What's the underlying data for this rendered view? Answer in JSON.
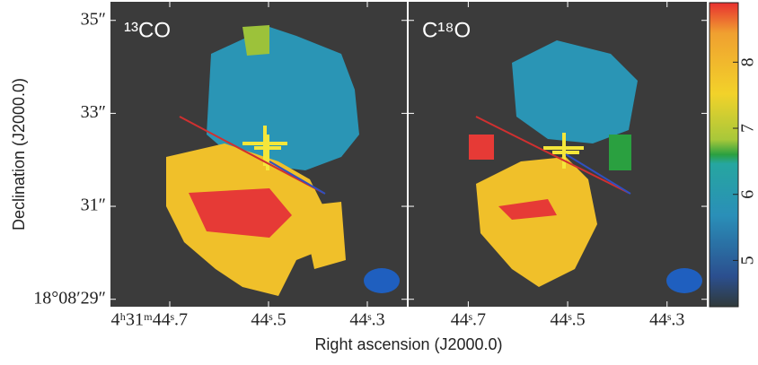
{
  "chart_data": {
    "type": "image-map",
    "ylabel": "Declination (J2000.0)",
    "xlabel": "Right ascension (J2000.0)",
    "ylim": [
      28.84,
      35.4
    ],
    "yticks": [
      {
        "value": 35,
        "label": "35″"
      },
      {
        "value": 33,
        "label": "33″"
      },
      {
        "value": 31,
        "label": "31″"
      },
      {
        "value": 29,
        "label": "18°08′29″"
      }
    ],
    "panels": [
      {
        "title": "¹³CO",
        "xlim": [
          44.82,
          44.22
        ],
        "xticks": [
          {
            "value": 44.7,
            "label": "4ʰ31ᵐ44ˢ.7"
          },
          {
            "value": 44.5,
            "label": "44ˢ.5"
          },
          {
            "value": 44.3,
            "label": "44ˢ.3"
          }
        ]
      },
      {
        "title": "C¹⁸O",
        "xlim": [
          44.82,
          44.22
        ],
        "xticks": [
          {
            "value": 44.7,
            "label": "44ˢ.7"
          },
          {
            "value": 44.5,
            "label": "44ˢ.5"
          },
          {
            "value": 44.3,
            "label": "44ˢ.3"
          }
        ]
      }
    ],
    "colorbar": {
      "lim": [
        4.3,
        8.9
      ],
      "ticks": [
        5,
        6,
        7,
        8
      ]
    }
  }
}
